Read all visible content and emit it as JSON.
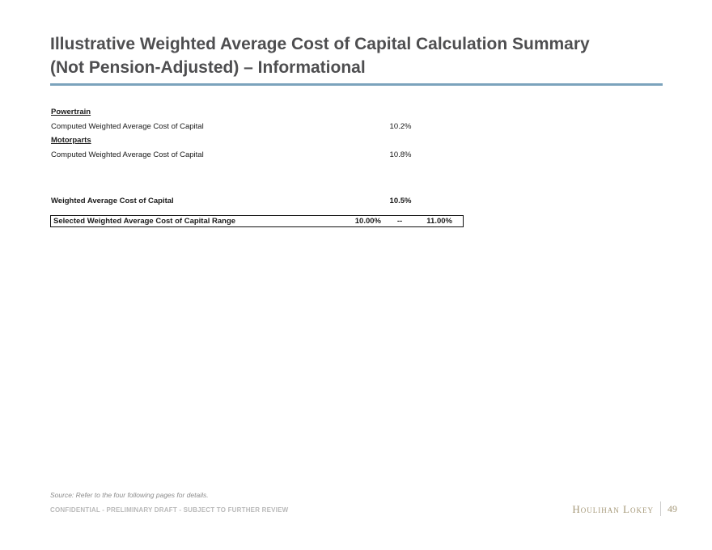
{
  "header": {
    "title": "Illustrative Weighted Average Cost of Capital Calculation Summary (Not Pension-Adjusted) – Informational"
  },
  "table": {
    "sections": [
      {
        "heading": "Powertrain",
        "row_label": "Computed Weighted Average Cost of Capital",
        "value": "10.2%"
      },
      {
        "heading": "Motorparts",
        "row_label": "Computed Weighted Average Cost of Capital",
        "value": "10.8%"
      }
    ],
    "total_row": {
      "label": "Weighted Average Cost of Capital",
      "value": "10.5%"
    },
    "selected_range_row": {
      "label": "Selected Weighted Average Cost of Capital Range",
      "low": "10.00%",
      "separator": "--",
      "high": "11.00%"
    }
  },
  "footer": {
    "source": "Source: Refer to the four following pages for details.",
    "confidential": "CONFIDENTIAL - PRELIMINARY DRAFT - SUBJECT TO FURTHER REVIEW",
    "brand": "Houlihan Lokey",
    "page_number": "49"
  },
  "colors": {
    "accent_rule": "#7ba3bc",
    "brand_tan": "#a59878",
    "title_gray": "#4e4e50"
  }
}
